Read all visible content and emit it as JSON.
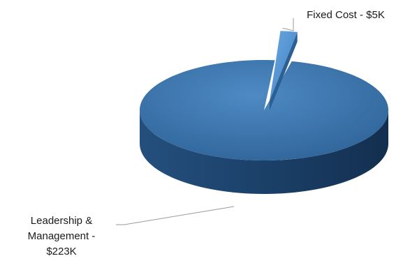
{
  "chart_data": {
    "type": "pie",
    "style": "3d",
    "slices": [
      {
        "label_lines": [
          "Fixed Cost - $5K"
        ],
        "value": 5,
        "exploded": true
      },
      {
        "label_lines": [
          "Leadership &",
          "Management -",
          "$223K"
        ],
        "value": 223,
        "exploded": false
      }
    ],
    "legend": "none"
  },
  "colors": {
    "top": "#3a73ad",
    "top_highlight": "#4f8ac4",
    "side": "#1f4a78",
    "side_dark": "#15365a",
    "exploded_top": "#5a9ad9",
    "leader_line": "#9a9a9a",
    "label": "#1a1a1a"
  }
}
